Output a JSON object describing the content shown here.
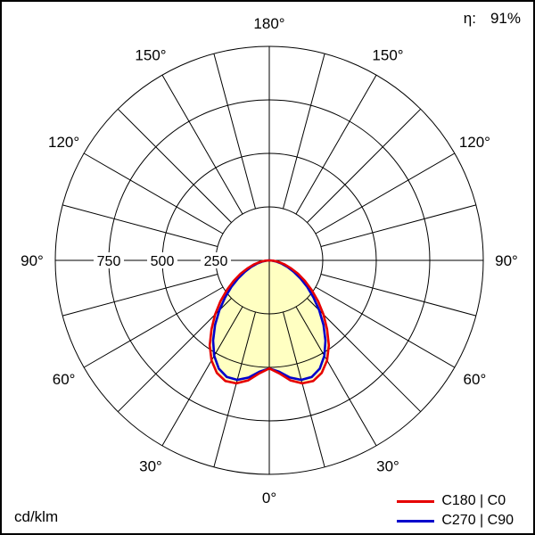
{
  "header": {
    "efficiency_label": "η:",
    "efficiency_value": "91%"
  },
  "footer": {
    "unit_label": "cd/klm"
  },
  "chart_data": {
    "type": "polar",
    "unit": "cd/klm",
    "radial_max": 1000,
    "rings": [
      250,
      500,
      750,
      1000
    ],
    "radial_tick_labels": [
      250,
      500,
      750
    ],
    "angle_step_deg": 15,
    "angle_labels_deg": [
      0,
      30,
      60,
      90,
      120,
      150,
      180
    ],
    "fill_color": "#ffffc2",
    "gamma_deg": [
      0,
      5,
      10,
      15,
      20,
      25,
      30,
      35,
      40,
      45,
      50,
      55,
      60,
      65,
      70,
      75,
      80,
      85,
      90
    ],
    "series": [
      {
        "name": "C180 | C0",
        "color": "#e60000",
        "values": [
          505,
          530,
          570,
          595,
          600,
          580,
          540,
          485,
          420,
          358,
          298,
          242,
          192,
          148,
          108,
          74,
          44,
          20,
          0
        ]
      },
      {
        "name": "C270 | C90",
        "color": "#0000cc",
        "values": [
          505,
          522,
          556,
          578,
          580,
          558,
          515,
          458,
          394,
          330,
          270,
          216,
          168,
          126,
          90,
          60,
          34,
          14,
          0
        ]
      }
    ]
  }
}
